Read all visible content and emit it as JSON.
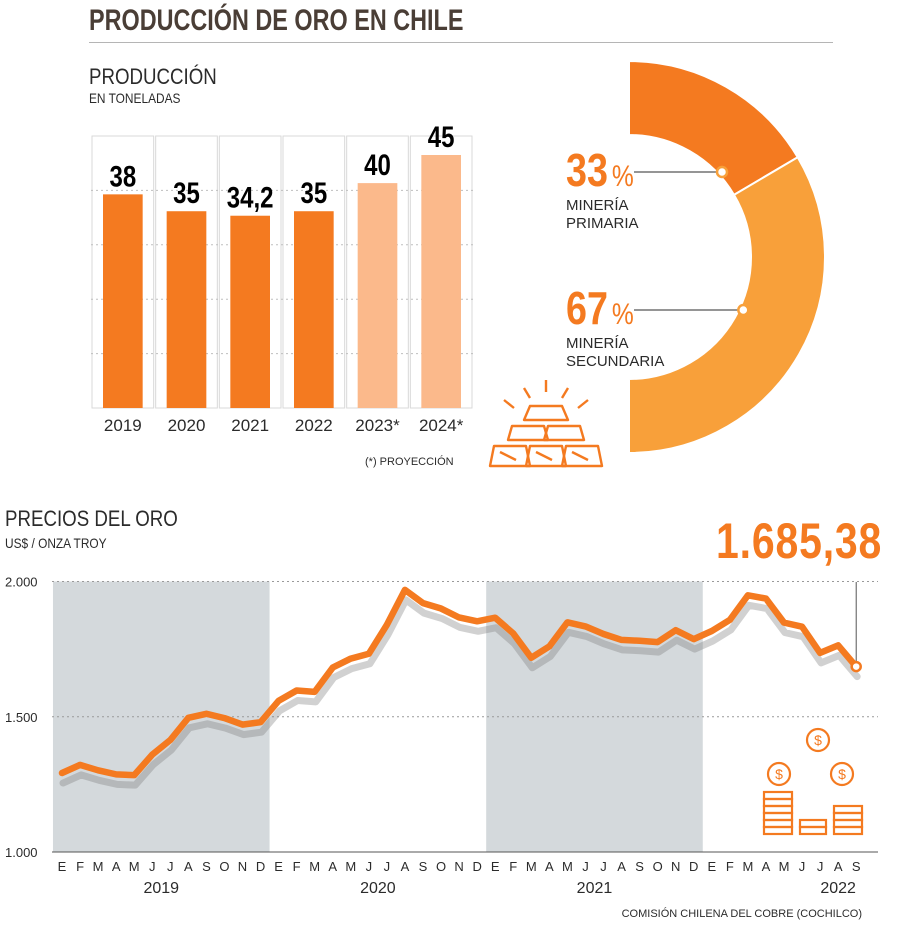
{
  "title": "PRODUCCIÓN DE ORO EN CHILE",
  "production": {
    "heading": "PRODUCCIÓN",
    "subheading": "EN TONELADAS",
    "note": "(*) PROYECCIÓN"
  },
  "price": {
    "heading": "PRECIOS DEL ORO",
    "subheading": "US$ / ONZA TROY",
    "latest": "1.685,38"
  },
  "source": "COMISIÓN CHILENA DEL COBRE (COCHILCO)",
  "colors": {
    "orange": "#f47a20",
    "orange_light": "#fbb98b",
    "orange_mid": "#f8a03a",
    "band": "#d4d9dc"
  },
  "chart_data": [
    {
      "type": "bar",
      "categories": [
        "2019",
        "2020",
        "2021",
        "2022",
        "2023*",
        "2024*"
      ],
      "values": [
        38,
        35,
        34.2,
        35,
        40,
        45
      ],
      "value_labels": [
        "38",
        "35",
        "34,2",
        "35",
        "40",
        "45"
      ],
      "projected": [
        false,
        false,
        false,
        false,
        true,
        true
      ],
      "title": "PRODUCCIÓN",
      "ylabel": "EN TONELADAS",
      "ylim": [
        0,
        50
      ],
      "grid": true
    },
    {
      "type": "pie",
      "style": "half-donut",
      "labels": [
        "MINERÍA PRIMARIA",
        "MINERÍA SECUNDARIA"
      ],
      "label_lines": [
        [
          "MINERÍA",
          "PRIMARIA"
        ],
        [
          "MINERÍA",
          "SECUNDARIA"
        ]
      ],
      "values": [
        33,
        67
      ],
      "value_labels": [
        "33",
        "67"
      ],
      "unit": "%"
    },
    {
      "type": "line",
      "title": "PRECIOS DEL ORO",
      "ylabel": "US$ / ONZA TROY",
      "ylim": [
        1000,
        2000
      ],
      "yticks": [
        1000,
        1500,
        2000
      ],
      "ytick_labels": [
        "1.000",
        "1.500",
        "2.000"
      ],
      "month_labels": [
        "E",
        "F",
        "M",
        "A",
        "M",
        "J",
        "J",
        "A",
        "S",
        "O",
        "N",
        "D",
        "E",
        "F",
        "M",
        "A",
        "M",
        "J",
        "J",
        "A",
        "S",
        "O",
        "N",
        "D",
        "E",
        "F",
        "M",
        "A",
        "M",
        "J",
        "J",
        "A",
        "S",
        "O",
        "N",
        "D",
        "E",
        "F",
        "M",
        "A",
        "M",
        "J",
        "J",
        "A",
        "S"
      ],
      "year_labels": [
        "2019",
        "2020",
        "2021",
        "2022"
      ],
      "shaded_years": [
        "2019",
        "2021"
      ],
      "values": [
        1292,
        1322,
        1302,
        1287,
        1284,
        1360,
        1414,
        1496,
        1511,
        1495,
        1471,
        1480,
        1559,
        1597,
        1592,
        1682,
        1715,
        1733,
        1840,
        1969,
        1920,
        1900,
        1867,
        1853,
        1866,
        1808,
        1718,
        1760,
        1849,
        1834,
        1806,
        1784,
        1781,
        1776,
        1820,
        1787,
        1817,
        1858,
        1949,
        1937,
        1848,
        1833,
        1736,
        1764,
        1685.38
      ],
      "last_value_label": "1.685,38",
      "grid": true
    }
  ]
}
